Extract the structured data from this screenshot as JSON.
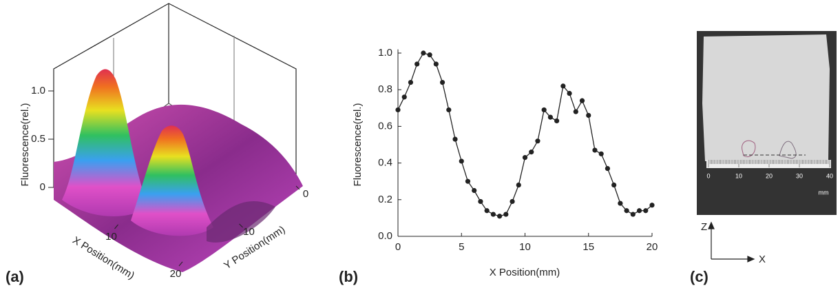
{
  "panel_labels": [
    "(a)",
    "(b)",
    "(c)"
  ],
  "chart_data": [
    {
      "type": "surface",
      "zlabel": "Fluorescence(rel.)",
      "xlabel": "X Position(mm)",
      "ylabel": "Y Position(mm)",
      "zlim": [
        0,
        1
      ],
      "zticks": [
        0,
        0.5,
        {
          "value": 1,
          "label": "1.0"
        }
      ],
      "xlim": [
        0,
        20
      ],
      "xticks": [
        10,
        20
      ],
      "ylim": [
        0,
        20
      ],
      "yticks": [
        0,
        10
      ]
    },
    {
      "type": "line",
      "xlabel": "X Position(mm)",
      "ylabel": "Fluorescence(rel.)",
      "color": "#222222",
      "x": [
        0,
        0.5,
        1,
        1.5,
        2,
        2.5,
        3,
        3.5,
        4,
        4.5,
        5,
        5.5,
        6,
        6.5,
        7,
        7.5,
        8,
        8.5,
        9,
        9.5,
        10,
        10.5,
        11,
        11.5,
        12,
        12.5,
        13,
        13.5,
        14,
        14.5,
        15,
        15.5,
        16,
        16.5,
        17,
        17.5,
        18,
        18.5,
        19,
        19.5,
        20
      ],
      "values": [
        0.69,
        0.76,
        0.84,
        0.94,
        1.0,
        0.99,
        0.94,
        0.84,
        0.69,
        0.53,
        0.41,
        0.3,
        0.25,
        0.19,
        0.14,
        0.12,
        0.11,
        0.12,
        0.19,
        0.28,
        0.43,
        0.46,
        0.52,
        0.69,
        0.65,
        0.63,
        0.82,
        0.78,
        0.68,
        0.74,
        0.66,
        0.47,
        0.45,
        0.37,
        0.28,
        0.18,
        0.14,
        0.12,
        0.14,
        0.14,
        0.17
      ],
      "xlim": [
        0,
        20
      ],
      "xticks": [
        0,
        5,
        10,
        15,
        20
      ],
      "ylim": [
        0,
        1.02
      ],
      "yticks": [
        {
          "value": 0,
          "label": "0.0"
        },
        {
          "value": 0.2,
          "label": "0.2"
        },
        {
          "value": 0.4,
          "label": "0.4"
        },
        {
          "value": 0.6,
          "label": "0.6"
        },
        {
          "value": 0.8,
          "label": "0.8"
        },
        {
          "value": 1,
          "label": "1.0"
        }
      ]
    }
  ],
  "photo": {
    "ruler_labels": [
      0,
      10,
      20,
      30,
      40
    ],
    "unit": "mm",
    "axis_labels": [
      "Z",
      "X"
    ]
  }
}
